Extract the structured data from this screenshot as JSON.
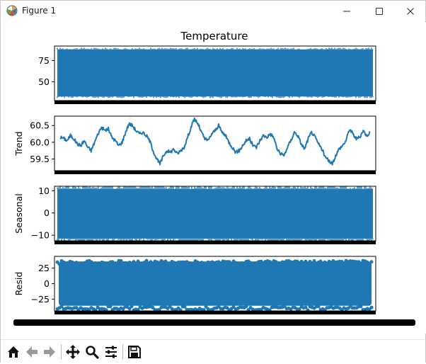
{
  "window": {
    "title": "Figure 1"
  },
  "figure": {
    "suptitle": "Temperature"
  },
  "chart_data": [
    {
      "type": "line",
      "title": "Temperature",
      "ylabel": "",
      "ylim": [
        28,
        92
      ],
      "yticks": [
        50,
        75
      ],
      "band": [
        33,
        88
      ],
      "color": "#1f77b4"
    },
    {
      "type": "line",
      "title": "",
      "ylabel": "Trend",
      "ylim": [
        59.15,
        60.78
      ],
      "yticks": [
        59.5,
        60.0,
        60.5
      ],
      "y": [
        60.15,
        60.12,
        60.05,
        60.2,
        60.1,
        59.95,
        59.9,
        60.05,
        59.85,
        59.75,
        60.0,
        60.25,
        60.45,
        60.35,
        60.4,
        60.15,
        60.05,
        59.9,
        60.0,
        60.3,
        60.55,
        60.5,
        60.35,
        60.25,
        60.3,
        60.2,
        60.05,
        59.75,
        59.5,
        59.35,
        59.6,
        59.75,
        59.7,
        59.8,
        59.65,
        59.75,
        59.85,
        60.15,
        60.45,
        60.7,
        60.55,
        60.3,
        60.1,
        60.05,
        60.25,
        60.35,
        60.5,
        60.3,
        60.2,
        60.0,
        59.85,
        59.7,
        59.75,
        59.9,
        60.05,
        60.1,
        59.9,
        59.85,
        60.05,
        60.2,
        60.15,
        60.25,
        60.15,
        59.8,
        59.65,
        59.6,
        59.85,
        60.05,
        60.3,
        60.2,
        59.95,
        59.8,
        60.1,
        60.3,
        60.15,
        59.95,
        59.8,
        59.55,
        59.45,
        59.35,
        59.6,
        59.8,
        59.9,
        60.05,
        60.4,
        60.25,
        60.1,
        60.15,
        60.35,
        60.2,
        60.3
      ],
      "color": "#1f77b4"
    },
    {
      "type": "line",
      "title": "",
      "ylabel": "Seasonal",
      "ylim": [
        -12.5,
        12.0
      ],
      "yticks": [
        -10,
        0,
        10
      ],
      "band": [
        -11.5,
        10.8
      ],
      "color": "#1f77b4"
    },
    {
      "type": "scatter",
      "title": "",
      "ylabel": "Resid",
      "ylim": [
        -44,
        44
      ],
      "yticks": [
        -25,
        0,
        25
      ],
      "band": [
        -38,
        38
      ],
      "color": "#1f77b4"
    }
  ],
  "toolbar": {
    "buttons": [
      "home-icon",
      "back-icon",
      "forward-icon",
      "pan-icon",
      "zoom-icon",
      "configure-icon",
      "save-icon"
    ]
  }
}
